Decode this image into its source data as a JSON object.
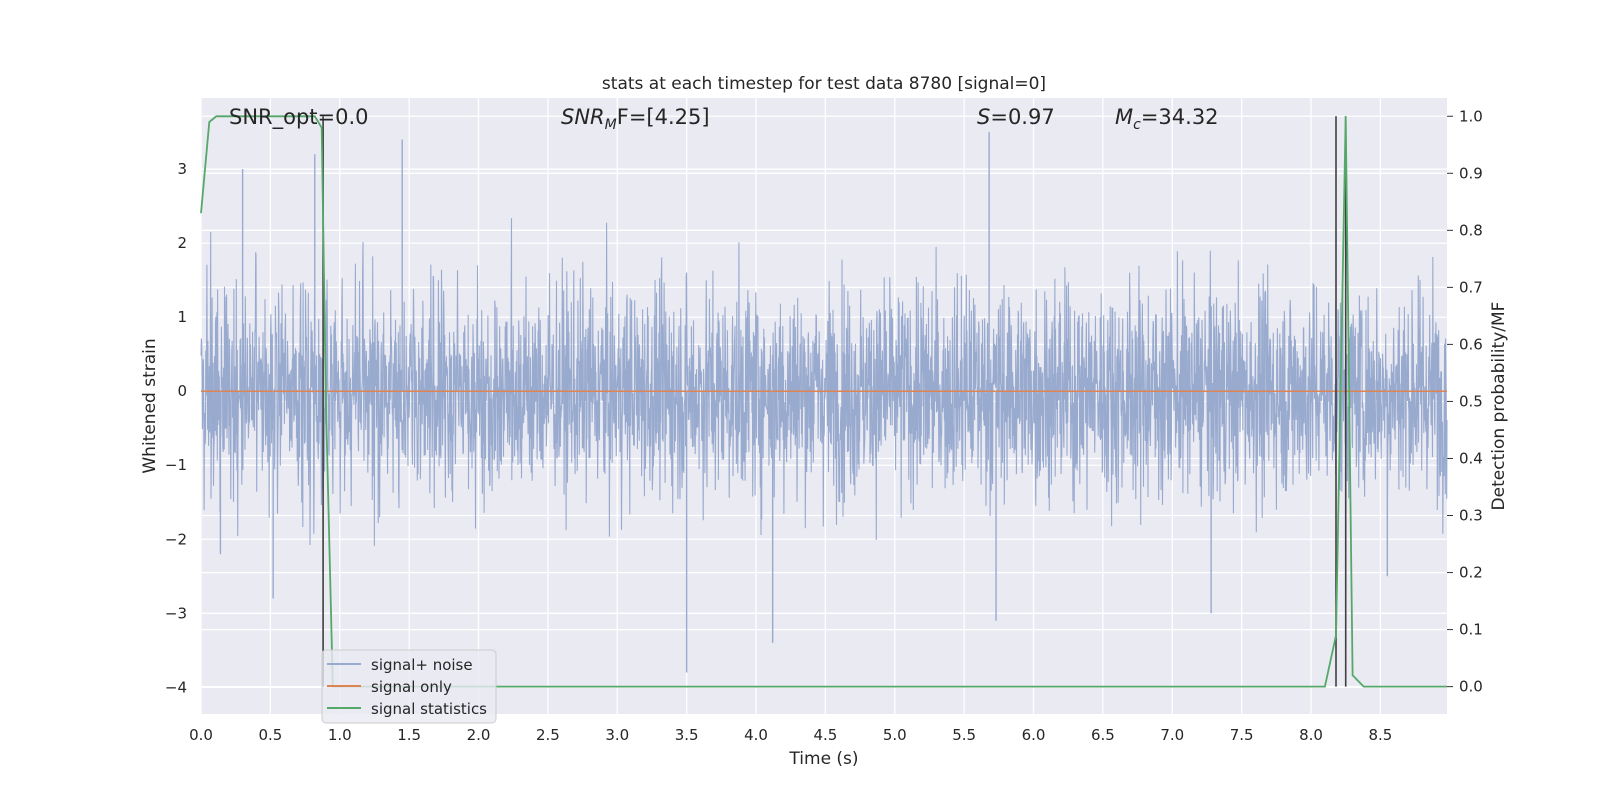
{
  "chart_data": {
    "type": "line",
    "title": "stats at each timestep for test data 8780 [signal=0]",
    "xlabel": "Time (s)",
    "ylabel_left": "Whitened strain",
    "ylabel_right": "Detection probability/MF",
    "xlim": [
      0.0,
      8.98
    ],
    "ylim_left": [
      -4.36,
      3.96
    ],
    "ylim_right": [
      -0.048,
      1.032
    ],
    "x_ticks": [
      "0.0",
      "0.5",
      "1.0",
      "1.5",
      "2.0",
      "2.5",
      "3.0",
      "3.5",
      "4.0",
      "4.5",
      "5.0",
      "5.5",
      "6.0",
      "6.5",
      "7.0",
      "7.5",
      "8.0",
      "8.5"
    ],
    "y_left_ticks": [
      "3",
      "2",
      "1",
      "0",
      "−1",
      "−2",
      "−3",
      "−4"
    ],
    "y_right_ticks": [
      "1.0",
      "0.9",
      "0.8",
      "0.7",
      "0.6",
      "0.5",
      "0.4",
      "0.3",
      "0.2",
      "0.1",
      "0.0"
    ],
    "grid": true,
    "legend_position": "lower-left",
    "annotations": {
      "snr_opt": "SNR_opt=0.0",
      "snr_mf_main": "SNR",
      "snr_mf_sub": "M",
      "snr_mf_rest": "F=[4.25]",
      "s_main": "S",
      "s_rest": "=0.97",
      "mc_main": "M",
      "mc_sub": "c",
      "mc_rest": "=34.32"
    },
    "series": [
      {
        "name": "signal+ noise",
        "color": "#99aacf",
        "axis": "left",
        "description_values": "whitened noise, approx zero-mean, range about -3.8 to 3.6",
        "sample_extremes": [
          {
            "x": 0.14,
            "y": -2.2
          },
          {
            "x": 0.3,
            "y": 3.0
          },
          {
            "x": 0.52,
            "y": -2.8
          },
          {
            "x": 0.82,
            "y": 3.2
          },
          {
            "x": 1.45,
            "y": 3.4
          },
          {
            "x": 3.5,
            "y": -3.8
          },
          {
            "x": 4.12,
            "y": -3.4
          },
          {
            "x": 5.68,
            "y": 3.5
          },
          {
            "x": 5.73,
            "y": -3.1
          },
          {
            "x": 7.28,
            "y": -3.0
          },
          {
            "x": 8.55,
            "y": -2.5
          }
        ]
      },
      {
        "name": "signal only",
        "color": "#dd8452",
        "axis": "left",
        "x": [
          0.0,
          8.98
        ],
        "y": [
          0.0,
          0.0
        ]
      },
      {
        "name": "signal statistics",
        "color": "#55a868",
        "axis": "right",
        "x": [
          0.0,
          0.06,
          0.11,
          0.5,
          0.82,
          0.87,
          0.9,
          0.95,
          1.0,
          8.1,
          8.18,
          8.25,
          8.3,
          8.38,
          8.98
        ],
        "y": [
          0.83,
          0.99,
          1.0,
          1.0,
          1.0,
          0.98,
          0.5,
          0.0,
          0.0,
          0.0,
          0.09,
          1.0,
          0.02,
          0.0,
          0.0
        ]
      }
    ],
    "vertical_markers": [
      {
        "x": 0.88,
        "color": "#404040"
      },
      {
        "x": 8.18,
        "color": "#404040"
      },
      {
        "x": 8.25,
        "color": "#404040"
      }
    ]
  },
  "colors": {
    "axes_background": "#eaeaf2",
    "grid": "#ffffff"
  }
}
